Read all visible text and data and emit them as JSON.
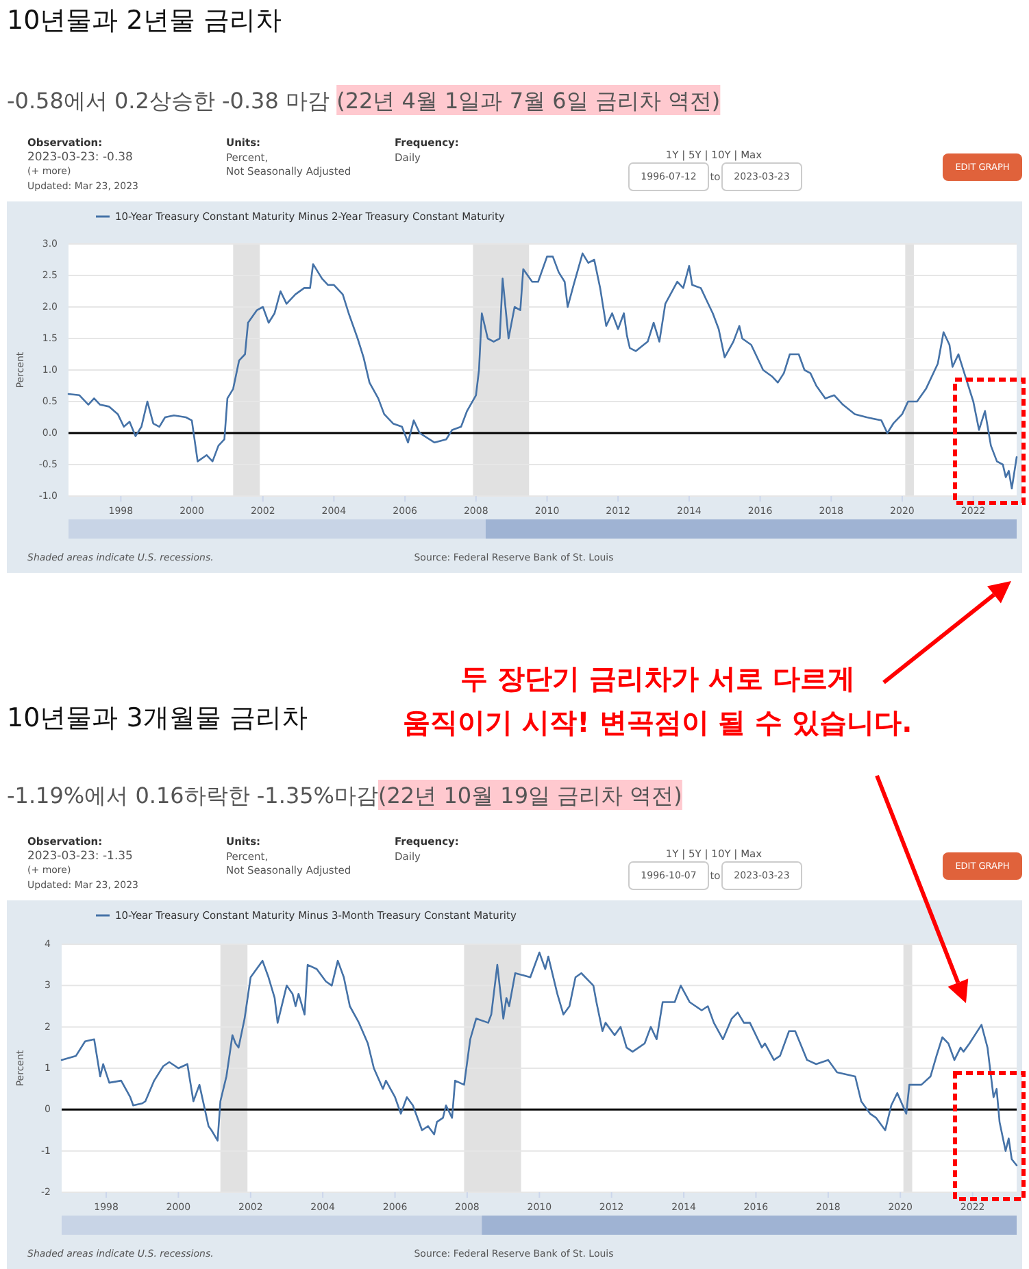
{
  "chart_data": [
    {
      "type": "line",
      "title": "10년물과 2년물 금리차",
      "subtitle": "-0.58에서 0.2상승한 -0.38 마감 (22년 4월 1일과 7월 6일 금리차 역전)",
      "ylabel": "Percent",
      "xlim": [
        "1996-07-12",
        "2023-03-23"
      ],
      "ylim": [
        -1.0,
        3.0
      ],
      "xticks": [
        {
          "value": "1998-01-01",
          "label": "1998"
        },
        {
          "value": "2000-01-01",
          "label": "2000"
        },
        {
          "value": "2002-01-01",
          "label": "2002"
        },
        {
          "value": "2004-01-01",
          "label": "2004"
        },
        {
          "value": "2006-01-01",
          "label": "2006"
        },
        {
          "value": "2008-01-01",
          "label": "2008"
        },
        {
          "value": "2010-01-01",
          "label": "2010"
        },
        {
          "value": "2012-01-01",
          "label": "2012"
        },
        {
          "value": "2014-01-01",
          "label": "2014"
        },
        {
          "value": "2016-01-01",
          "label": "2016"
        },
        {
          "value": "2018-01-01",
          "label": "2018"
        },
        {
          "value": "2020-01-01",
          "label": "2020"
        },
        {
          "value": "2022-01-01",
          "label": "2022"
        }
      ],
      "yticks": [
        {
          "value": 3,
          "label": "3.0"
        },
        {
          "value": 2.5,
          "label": "2.5"
        },
        {
          "value": 2,
          "label": "2.0"
        },
        {
          "value": 1.5,
          "label": "1.5"
        },
        {
          "value": 1,
          "label": "1.0"
        },
        {
          "value": 0.5,
          "label": "0.5"
        },
        {
          "value": 0,
          "label": "0.0"
        },
        {
          "value": -0.5,
          "label": "-0.5"
        },
        {
          "value": -1,
          "label": "-1.0"
        }
      ],
      "grid": "y",
      "legend": "top left",
      "ref_lines": [
        {
          "axis": "y",
          "value": 0,
          "color": "#000000"
        }
      ],
      "bands": [
        {
          "axis": "x",
          "from": "2001-03-01",
          "to": "2001-11-30",
          "color": "#e1e1e1"
        },
        {
          "axis": "x",
          "from": "2007-12-01",
          "to": "2009-06-30",
          "color": "#e1e1e1"
        },
        {
          "axis": "x",
          "from": "2020-02-01",
          "to": "2020-04-30",
          "color": "#e1e1e1"
        }
      ],
      "annotations": [
        "Observation:",
        "2023-03-23: -0.38",
        "(+ more)",
        "Updated: Mar 23, 2023",
        "Units:",
        "Percent,",
        "Not Seasonally Adjusted",
        "Frequency:",
        "Daily",
        "1Y | 5Y | 10Y | Max",
        "1996-07-12",
        "to",
        "2023-03-23",
        "EDIT GRAPH",
        "Shaded areas indicate U.S. recessions.",
        "Source: Federal Reserve Bank of St. Louis",
        "두 장단기 금리차가 서로 다르게",
        "움직이기 시작! 변곡점이 될 수 있습니다."
      ],
      "series": [
        {
          "name": "10-Year Treasury Constant Maturity Minus 2-Year Treasury Constant Maturity",
          "color": "#4572a7",
          "x": [
            "1996-07-12",
            "1996-11",
            "1997-02",
            "1997-04",
            "1997-06",
            "1997-09",
            "1997-12",
            "1998-02",
            "1998-04",
            "1998-06",
            "1998-08",
            "1998-10",
            "1998-12",
            "1999-02",
            "1999-04",
            "1999-07",
            "1999-11",
            "2000-01",
            "2000-03",
            "2000-06",
            "2000-08",
            "2000-10",
            "2000-12",
            "2001-01",
            "2001-03",
            "2001-05",
            "2001-07",
            "2001-08",
            "2001-11",
            "2002-01",
            "2002-03",
            "2002-05",
            "2002-07",
            "2002-09",
            "2002-12",
            "2003-03",
            "2003-05",
            "2003-06",
            "2003-09",
            "2003-11",
            "2004-01",
            "2004-04",
            "2004-06",
            "2004-09",
            "2004-11",
            "2005-01",
            "2005-04",
            "2005-06",
            "2005-09",
            "2005-12",
            "2006-02",
            "2006-04",
            "2006-06",
            "2006-11",
            "2007-03",
            "2007-05",
            "2007-08",
            "2007-10",
            "2008-01",
            "2008-02",
            "2008-03",
            "2008-05",
            "2008-07",
            "2008-09",
            "2008-10",
            "2008-12",
            "2009-02",
            "2009-04",
            "2009-05",
            "2009-08",
            "2009-10",
            "2010-01",
            "2010-03",
            "2010-05",
            "2010-07",
            "2010-08",
            "2010-10",
            "2011-01",
            "2011-03",
            "2011-05",
            "2011-07",
            "2011-09",
            "2011-11",
            "2012-01",
            "2012-03",
            "2012-04",
            "2012-05",
            "2012-07",
            "2012-11",
            "2013-01",
            "2013-03",
            "2013-05",
            "2013-09",
            "2013-11",
            "2014-01",
            "2014-02",
            "2014-05",
            "2014-07",
            "2014-09",
            "2014-11",
            "2015-01",
            "2015-04",
            "2015-06",
            "2015-07",
            "2015-10",
            "2016-02",
            "2016-05",
            "2016-07",
            "2016-09",
            "2016-11",
            "2017-02",
            "2017-04",
            "2017-06",
            "2017-08",
            "2017-11",
            "2018-02",
            "2018-05",
            "2018-09",
            "2019-01",
            "2019-06",
            "2019-08",
            "2019-10",
            "2020-01",
            "2020-03",
            "2020-06",
            "2020-09",
            "2021-01",
            "2021-03",
            "2021-05",
            "2021-06",
            "2021-08",
            "2021-10",
            "2022-01",
            "2022-03",
            "2022-05",
            "2022-07",
            "2022-09",
            "2022-11",
            "2022-12",
            "2023-01",
            "2023-02",
            "2023-03-23"
          ],
          "values": [
            0.62,
            0.6,
            0.45,
            0.55,
            0.45,
            0.42,
            0.3,
            0.1,
            0.18,
            -0.05,
            0.1,
            0.5,
            0.15,
            0.1,
            0.25,
            0.28,
            0.25,
            0.2,
            -0.45,
            -0.35,
            -0.45,
            -0.2,
            -0.1,
            0.55,
            0.7,
            1.15,
            1.25,
            1.75,
            1.95,
            2.0,
            1.75,
            1.9,
            2.25,
            2.05,
            2.2,
            2.3,
            2.3,
            2.68,
            2.45,
            2.35,
            2.35,
            2.2,
            1.9,
            1.5,
            1.2,
            0.8,
            0.55,
            0.3,
            0.15,
            0.1,
            -0.15,
            0.2,
            0.0,
            -0.15,
            -0.1,
            0.05,
            0.1,
            0.35,
            0.6,
            1.0,
            1.9,
            1.5,
            1.45,
            1.5,
            2.45,
            1.5,
            2.0,
            1.95,
            2.6,
            2.4,
            2.4,
            2.8,
            2.8,
            2.55,
            2.4,
            2.0,
            2.35,
            2.85,
            2.7,
            2.75,
            2.3,
            1.7,
            1.9,
            1.65,
            1.9,
            1.55,
            1.35,
            1.3,
            1.45,
            1.75,
            1.45,
            2.05,
            2.4,
            2.3,
            2.65,
            2.35,
            2.3,
            2.1,
            1.9,
            1.65,
            1.2,
            1.45,
            1.7,
            1.5,
            1.4,
            1.0,
            0.9,
            0.8,
            0.95,
            1.25,
            1.25,
            1.0,
            0.95,
            0.75,
            0.55,
            0.6,
            0.45,
            0.3,
            0.25,
            0.2,
            0.0,
            0.15,
            0.3,
            0.5,
            0.5,
            0.7,
            1.1,
            1.6,
            1.4,
            1.05,
            1.25,
            0.95,
            0.5,
            0.05,
            0.35,
            -0.2,
            -0.45,
            -0.5,
            -0.7,
            -0.6,
            -0.88,
            -0.38
          ]
        }
      ]
    },
    {
      "type": "line",
      "title": "10년물과 3개월물 금리차",
      "subtitle": "-1.19%에서 0.16하락한 -1.35%마감(22년 10월 19일 금리차 역전)",
      "ylabel": "Percent",
      "xlim": [
        "1996-10-07",
        "2023-03-23"
      ],
      "ylim": [
        -2,
        4
      ],
      "xticks": [
        {
          "value": "1998-01-01",
          "label": "1998"
        },
        {
          "value": "2000-01-01",
          "label": "2000"
        },
        {
          "value": "2002-01-01",
          "label": "2002"
        },
        {
          "value": "2004-01-01",
          "label": "2004"
        },
        {
          "value": "2006-01-01",
          "label": "2006"
        },
        {
          "value": "2008-01-01",
          "label": "2008"
        },
        {
          "value": "2010-01-01",
          "label": "2010"
        },
        {
          "value": "2012-01-01",
          "label": "2012"
        },
        {
          "value": "2014-01-01",
          "label": "2014"
        },
        {
          "value": "2016-01-01",
          "label": "2016"
        },
        {
          "value": "2018-01-01",
          "label": "2018"
        },
        {
          "value": "2020-01-01",
          "label": "2020"
        },
        {
          "value": "2022-01-01",
          "label": "2022"
        }
      ],
      "yticks": [
        4,
        3,
        2,
        1,
        0,
        -1,
        -2
      ],
      "grid": "y",
      "legend": "top left",
      "ref_lines": [
        {
          "axis": "y",
          "value": 0,
          "color": "#000000"
        }
      ],
      "bands": [
        {
          "axis": "x",
          "from": "2001-03-01",
          "to": "2001-11-30",
          "color": "#e1e1e1"
        },
        {
          "axis": "x",
          "from": "2007-12-01",
          "to": "2009-06-30",
          "color": "#e1e1e1"
        },
        {
          "axis": "x",
          "from": "2020-02-01",
          "to": "2020-04-30",
          "color": "#e1e1e1"
        }
      ],
      "annotations": [
        "Observation:",
        "2023-03-23: -1.35",
        "(+ more)",
        "Updated: Mar 23, 2023",
        "Units:",
        "Percent,",
        "Not Seasonally Adjusted",
        "Frequency:",
        "Daily",
        "1Y | 5Y | 10Y | Max",
        "1996-10-07",
        "to",
        "2023-03-23",
        "EDIT GRAPH",
        "Shaded areas indicate U.S. recessions.",
        "Source: Federal Reserve Bank of St. Louis"
      ],
      "series": [
        {
          "name": "10-Year Treasury Constant Maturity Minus 3-Month Treasury Constant Maturity",
          "color": "#4572a7",
          "x": [
            "1996-10-07",
            "1997-03",
            "1997-06",
            "1997-09",
            "1997-11",
            "1997-12",
            "1998-02",
            "1998-06",
            "1998-09",
            "1998-10",
            "1999-01",
            "1999-02",
            "1999-05",
            "1999-08",
            "1999-10",
            "2000-01",
            "2000-04",
            "2000-06",
            "2000-08",
            "2000-11",
            "2000-12",
            "2001-02",
            "2001-03",
            "2001-05",
            "2001-07",
            "2001-08",
            "2001-09",
            "2001-11",
            "2002-01",
            "2002-05",
            "2002-07",
            "2002-09",
            "2002-10",
            "2003-01",
            "2003-03",
            "2003-04",
            "2003-05",
            "2003-07",
            "2003-08",
            "2003-11",
            "2004-02",
            "2004-04",
            "2004-06",
            "2004-08",
            "2004-10",
            "2005-01",
            "2005-04",
            "2005-06",
            "2005-09",
            "2005-10",
            "2006-01",
            "2006-03",
            "2006-05",
            "2006-07",
            "2006-10",
            "2006-12",
            "2007-02",
            "2007-03",
            "2007-05",
            "2007-06",
            "2007-08",
            "2007-09",
            "2007-12",
            "2008-02",
            "2008-04",
            "2008-08",
            "2008-09",
            "2008-11",
            "2009-01",
            "2009-02",
            "2009-03",
            "2009-05",
            "2009-10",
            "2010-01",
            "2010-03",
            "2010-04",
            "2010-07",
            "2010-09",
            "2010-11",
            "2011-01",
            "2011-03",
            "2011-07",
            "2011-08",
            "2011-10",
            "2011-11",
            "2012-02",
            "2012-04",
            "2012-06",
            "2012-08",
            "2012-12",
            "2013-02",
            "2013-04",
            "2013-06",
            "2013-10",
            "2013-12",
            "2014-03",
            "2014-07",
            "2014-09",
            "2014-11",
            "2015-02",
            "2015-05",
            "2015-07",
            "2015-09",
            "2015-11",
            "2016-03",
            "2016-04",
            "2016-07",
            "2016-09",
            "2016-12",
            "2017-02",
            "2017-06",
            "2017-09",
            "2018-01",
            "2018-04",
            "2018-10",
            "2018-12",
            "2019-03",
            "2019-05",
            "2019-08",
            "2019-10",
            "2019-12",
            "2020-03",
            "2020-04",
            "2020-08",
            "2020-11",
            "2021-01",
            "2021-03",
            "2021-05",
            "2021-07",
            "2021-09",
            "2021-10",
            "2021-12",
            "2022-04",
            "2022-06",
            "2022-08",
            "2022-09",
            "2022-10",
            "2022-12",
            "2023-01",
            "2023-02",
            "2023-03-23"
          ],
          "values": [
            1.2,
            1.3,
            1.65,
            1.7,
            0.8,
            1.1,
            0.65,
            0.7,
            0.3,
            0.1,
            0.15,
            0.2,
            0.7,
            1.05,
            1.15,
            1.0,
            1.1,
            0.2,
            0.6,
            -0.4,
            -0.5,
            -0.75,
            0.2,
            0.8,
            1.8,
            1.6,
            1.5,
            2.2,
            3.2,
            3.6,
            3.2,
            2.7,
            2.1,
            3.0,
            2.8,
            2.5,
            2.8,
            2.3,
            3.5,
            3.4,
            3.1,
            3.0,
            3.6,
            3.2,
            2.5,
            2.1,
            1.6,
            1.0,
            0.5,
            0.7,
            0.3,
            -0.1,
            0.3,
            0.1,
            -0.5,
            -0.4,
            -0.6,
            -0.3,
            -0.2,
            0.1,
            -0.2,
            0.7,
            0.6,
            1.7,
            2.2,
            2.1,
            2.3,
            3.5,
            2.2,
            2.7,
            2.5,
            3.3,
            3.2,
            3.8,
            3.4,
            3.7,
            2.8,
            2.3,
            2.5,
            3.2,
            3.3,
            3.0,
            2.6,
            1.9,
            2.1,
            1.8,
            2.0,
            1.5,
            1.4,
            1.6,
            2.0,
            1.7,
            2.6,
            2.6,
            3.0,
            2.6,
            2.4,
            2.5,
            2.1,
            1.7,
            2.2,
            2.35,
            2.1,
            2.1,
            1.5,
            1.6,
            1.2,
            1.3,
            1.9,
            1.9,
            1.2,
            1.1,
            1.2,
            0.9,
            0.8,
            0.2,
            -0.1,
            -0.2,
            -0.5,
            0.1,
            0.4,
            -0.1,
            0.6,
            0.6,
            0.8,
            1.3,
            1.75,
            1.6,
            1.2,
            1.5,
            1.4,
            1.6,
            2.05,
            1.5,
            0.3,
            0.5,
            -0.3,
            -1.0,
            -0.7,
            -1.2,
            -1.35
          ]
        }
      ]
    }
  ]
}
